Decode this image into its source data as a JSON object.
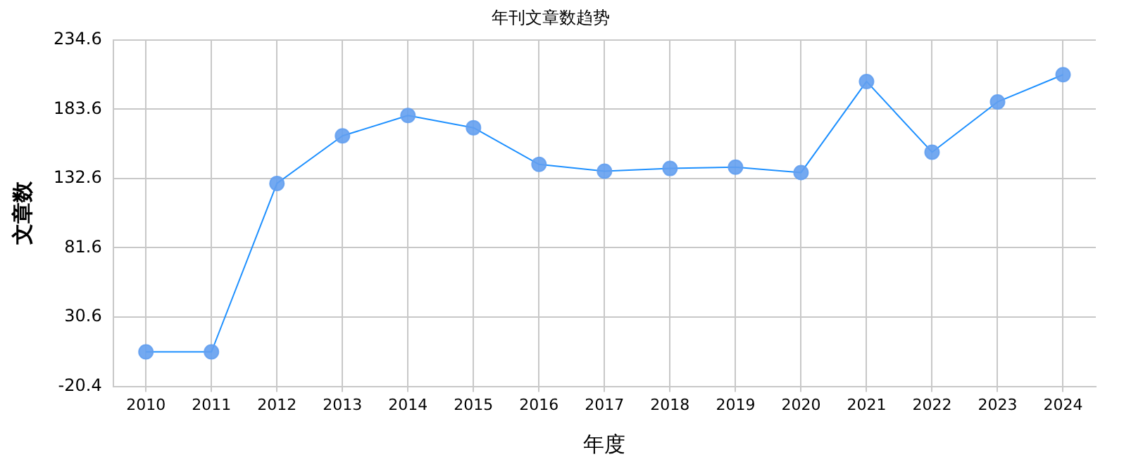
{
  "chart_data": {
    "type": "line",
    "title": "年刊文章数趋势",
    "xlabel": "年度",
    "ylabel": "文章数",
    "categories": [
      "2010",
      "2011",
      "2012",
      "2013",
      "2014",
      "2015",
      "2016",
      "2017",
      "2018",
      "2019",
      "2020",
      "2021",
      "2022",
      "2023",
      "2024"
    ],
    "series": [
      {
        "color": "#1e90ff",
        "values": [
          5,
          5,
          129,
          164,
          179,
          170,
          143,
          138,
          140,
          141,
          137,
          204,
          152,
          189,
          209
        ]
      }
    ],
    "ylim": [
      -20.4,
      234.6
    ],
    "yticks": [
      -20.4,
      30.6,
      81.6,
      132.6,
      183.6,
      234.6
    ],
    "grid": true,
    "marker": "circle",
    "line_style": "solid",
    "legend": false
  }
}
